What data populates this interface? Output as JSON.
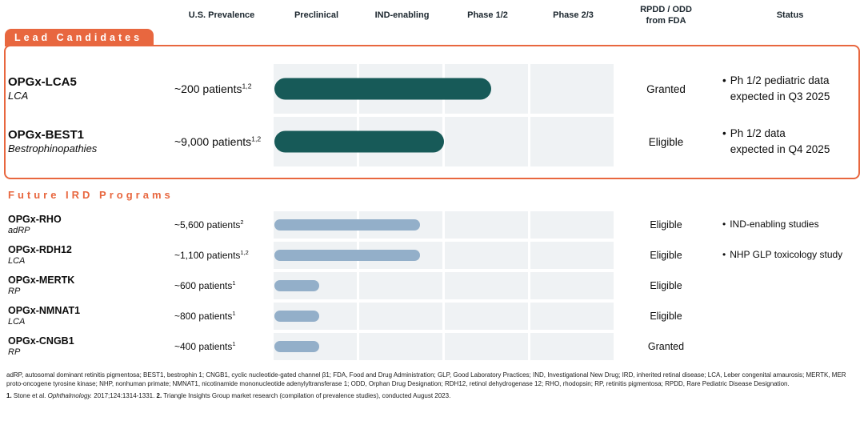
{
  "palette": {
    "orange": "#E8673F",
    "teal": "#175A58",
    "blue": "#93AFC9",
    "band": "#EFF2F4",
    "header_text": "#1B262E"
  },
  "header": {
    "columns": [
      "U.S. Prevalence",
      "Preclinical",
      "IND-enabling",
      "Phase 1/2",
      "Phase 2/3",
      "RPDD / ODD\nfrom FDA",
      "Status"
    ]
  },
  "sections": [
    {
      "label": "Lead Candidates",
      "bar_color": "#175A58",
      "rows": [
        {
          "program": "OPGx-LCA5",
          "indication": "LCA",
          "prevalence": "~200 patients",
          "prevalence_sup": "1,2",
          "progress": 2.55,
          "rpdd": "Granted",
          "status": "Ph 1/2 pediatric data\nexpected in Q3 2025"
        },
        {
          "program": "OPGx-BEST1",
          "indication": "Bestrophinopathies",
          "prevalence": "~9,000 patients",
          "prevalence_sup": "1,2",
          "progress": 2.0,
          "rpdd": "Eligible",
          "status": "Ph 1/2 data\nexpected in Q4 2025"
        }
      ]
    },
    {
      "label": "Future IRD Programs",
      "bar_color": "#93AFC9",
      "rows": [
        {
          "program": "OPGx-RHO",
          "indication": "adRP",
          "prevalence": "~5,600 patients",
          "prevalence_sup": "2",
          "progress": 1.72,
          "rpdd": "Eligible",
          "status": "IND-enabling studies"
        },
        {
          "program": "OPGx-RDH12",
          "indication": "LCA",
          "prevalence": "~1,100 patients",
          "prevalence_sup": "1,2",
          "progress": 1.72,
          "rpdd": "Eligible",
          "status": "NHP GLP toxicology study"
        },
        {
          "program": "OPGx-MERTK",
          "indication": "RP",
          "prevalence": "~600 patients",
          "prevalence_sup": "1",
          "progress": 0.54,
          "rpdd": "Eligible",
          "status": ""
        },
        {
          "program": "OPGx-NMNAT1",
          "indication": "LCA",
          "prevalence": "~800 patients",
          "prevalence_sup": "1",
          "progress": 0.54,
          "rpdd": "Eligible",
          "status": ""
        },
        {
          "program": "OPGx-CNGB1",
          "indication": "RP",
          "prevalence": "~400 patients",
          "prevalence_sup": "1",
          "progress": 0.54,
          "rpdd": "Granted",
          "status": ""
        }
      ]
    }
  ],
  "footnotes": {
    "abbreviations": "adRP, autosomal dominant retinitis pigmentosa; BEST1, bestrophin 1; CNGB1, cyclic nucleotide-gated channel β1; FDA, Food and Drug Administration; GLP, Good Laboratory Practices; IND, Investigational New Drug; IRD, inherited retinal disease; LCA, Leber congenital amaurosis; MERTK, MER proto-oncogene tyrosine kinase; NHP, nonhuman primate; NMNAT1, nicotinamide mononucleotide adenylyltransferase 1; ODD, Orphan Drug Designation; RDH12, retinol dehydrogenase 12; RHO, rhodopsin; RP, retinitis pigmentosa; RPDD, Rare Pediatric Disease Designation.",
    "references": [
      {
        "marker": "1.",
        "segments": [
          {
            "t": " Stone et al. "
          },
          {
            "t": "Ophthalmology.",
            "i": true
          },
          {
            "t": " 2017;124:1314-1331. "
          }
        ]
      },
      {
        "marker": "2.",
        "segments": [
          {
            "t": " Triangle Insights Group market research (compilation of prevalence studies), conducted August 2023."
          }
        ]
      }
    ]
  },
  "chart_data": {
    "type": "bar",
    "title": "IRD gene therapy pipeline progress by development stage",
    "stages": [
      "Preclinical",
      "IND-enabling",
      "Phase 1/2",
      "Phase 2/3"
    ],
    "stage_axis_range": [
      0,
      4
    ],
    "legend": [
      {
        "name": "Lead Candidates",
        "color": "#175A58"
      },
      {
        "name": "Future IRD Programs",
        "color": "#93AFC9"
      }
    ],
    "series": [
      {
        "name": "OPGx-LCA5",
        "group": "Lead Candidates",
        "indication": "LCA",
        "us_prevalence_patients": 200,
        "progress_stage_units": 2.55,
        "rpdd_odd_from_fda": "Granted",
        "status": "Ph 1/2 pediatric data expected in Q3 2025"
      },
      {
        "name": "OPGx-BEST1",
        "group": "Lead Candidates",
        "indication": "Bestrophinopathies",
        "us_prevalence_patients": 9000,
        "progress_stage_units": 2.0,
        "rpdd_odd_from_fda": "Eligible",
        "status": "Ph 1/2 data expected in Q4 2025"
      },
      {
        "name": "OPGx-RHO",
        "group": "Future IRD Programs",
        "indication": "adRP",
        "us_prevalence_patients": 5600,
        "progress_stage_units": 1.72,
        "rpdd_odd_from_fda": "Eligible",
        "status": "IND-enabling studies"
      },
      {
        "name": "OPGx-RDH12",
        "group": "Future IRD Programs",
        "indication": "LCA",
        "us_prevalence_patients": 1100,
        "progress_stage_units": 1.72,
        "rpdd_odd_from_fda": "Eligible",
        "status": "NHP GLP toxicology study"
      },
      {
        "name": "OPGx-MERTK",
        "group": "Future IRD Programs",
        "indication": "RP",
        "us_prevalence_patients": 600,
        "progress_stage_units": 0.54,
        "rpdd_odd_from_fda": "Eligible",
        "status": ""
      },
      {
        "name": "OPGx-NMNAT1",
        "group": "Future IRD Programs",
        "indication": "LCA",
        "us_prevalence_patients": 800,
        "progress_stage_units": 0.54,
        "rpdd_odd_from_fda": "Eligible",
        "status": ""
      },
      {
        "name": "OPGx-CNGB1",
        "group": "Future IRD Programs",
        "indication": "RP",
        "us_prevalence_patients": 400,
        "progress_stage_units": 0.54,
        "rpdd_odd_from_fda": "Granted",
        "status": ""
      }
    ]
  }
}
